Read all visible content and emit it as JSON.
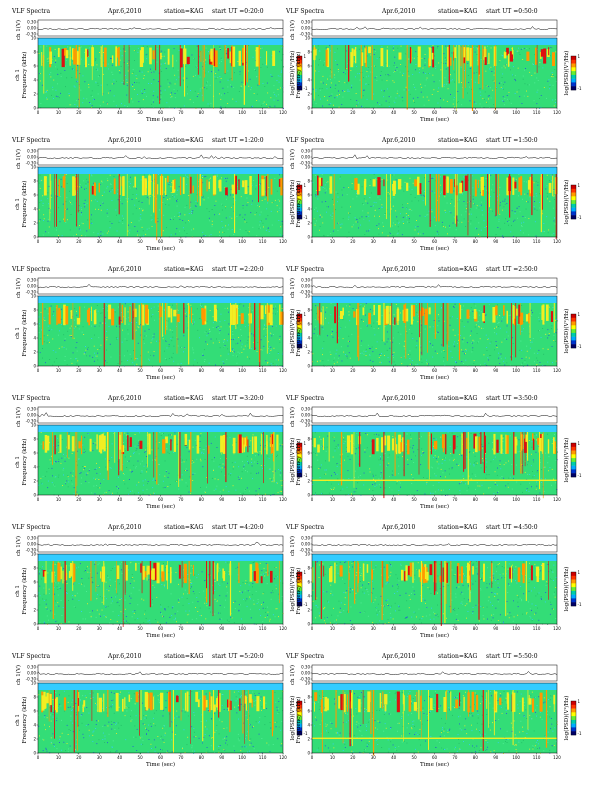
{
  "colors": {
    "background": "#33ccff",
    "green": "#33dd77",
    "yellow": "#f2ee22",
    "orange": "#ff9900",
    "red": "#dd1111",
    "blue": "#2255dd",
    "colorbar": [
      "#cc0000",
      "#ff3300",
      "#ff9900",
      "#ffff00",
      "#66ee33",
      "#00ccaa",
      "#00aaff",
      "#0033cc",
      "#000066"
    ]
  },
  "panels": [
    {
      "title": "VLF Spectra",
      "date": "Apr.6,2010",
      "station": "station=KAG",
      "start": "start  UT =0:20:0",
      "ch_label": "ch 1(V)",
      "ylabel_top": "ch 1",
      "ylabel": "Frequency (kHz)",
      "xlabel": "Time (sec)",
      "cbar_label": "log(PSD)(V²/Hz)"
    },
    {
      "title": "VLF Spectra",
      "date": "Apr.6,2010",
      "station": "station=KAG",
      "start": "start  UT =0:50:0",
      "ch_label": "ch 1(V)",
      "ylabel_top": "",
      "ylabel": "Frequency (kHz)",
      "xlabel": "Time (sec)",
      "cbar_label": "log(PSD)(V²/Hz)"
    },
    {
      "title": "VLF Spectra",
      "date": "Apr.6,2010",
      "station": "station=KAG",
      "start": "start  UT =1:20:0",
      "ch_label": "ch 1(V)",
      "ylabel_top": "ch 1",
      "ylabel": "Frequency (kHz)",
      "xlabel": "Time (sec)",
      "cbar_label": "log(PSD)(V²/Hz)"
    },
    {
      "title": "VLF Spectra",
      "date": "Apr.6,2010",
      "station": "station=KAG",
      "start": "start  UT =1:50:0",
      "ch_label": "ch 1(V)",
      "ylabel_top": "",
      "ylabel": "Frequency (kHz)",
      "xlabel": "Time (sec)",
      "cbar_label": "log(PSD)(V²/Hz)"
    },
    {
      "title": "VLF Spectra",
      "date": "Apr.6,2010",
      "station": "station=KAG",
      "start": "start  UT =2:20:0",
      "ch_label": "ch 1(V)",
      "ylabel_top": "ch 1",
      "ylabel": "Frequency (kHz)",
      "xlabel": "Time (sec)",
      "cbar_label": "log(PSD)(V²/Hz)"
    },
    {
      "title": "VLF Spectra",
      "date": "Apr.6,2010",
      "station": "station=KAG",
      "start": "start  UT =2:50:0",
      "ch_label": "ch 1(V)",
      "ylabel_top": "",
      "ylabel": "Frequency (kHz)",
      "xlabel": "Time (sec)",
      "cbar_label": "log(PSD)(V²/Hz)"
    },
    {
      "title": "VLF Spectra",
      "date": "Apr.6,2010",
      "station": "station=KAG",
      "start": "start  UT =3:20:0",
      "ch_label": "ch 1(V)",
      "ylabel_top": "ch 1",
      "ylabel": "Frequency (kHz)",
      "xlabel": "Time (sec)",
      "cbar_label": "log(PSD)(V²/Hz)"
    },
    {
      "title": "VLF Spectra",
      "date": "Apr.6,2010",
      "station": "station=KAG",
      "start": "start  UT =3:50:0",
      "ch_label": "ch 1(V)",
      "ylabel_top": "",
      "ylabel": "Frequency (kHz)",
      "xlabel": "Time (sec)",
      "cbar_label": "log(PSD)(V²/Hz)"
    },
    {
      "title": "VLF Spectra",
      "date": "Apr.6,2010",
      "station": "station=KAG",
      "start": "start  UT =4:20:0",
      "ch_label": "ch 1(V)",
      "ylabel_top": "ch 1",
      "ylabel": "Frequency (kHz)",
      "xlabel": "Time (sec)",
      "cbar_label": "log(PSD)(V²/Hz)"
    },
    {
      "title": "VLF Spectra",
      "date": "Apr.6,2010",
      "station": "station=KAG",
      "start": "start  UT =4:50:0",
      "ch_label": "ch 1(V)",
      "ylabel_top": "",
      "ylabel": "Frequency (kHz)",
      "xlabel": "Time (sec)",
      "cbar_label": "log(PSD)(V²/Hz)"
    },
    {
      "title": "VLF Spectra",
      "date": "Apr.6,2010",
      "station": "station=KAG",
      "start": "start  UT =5:20:0",
      "ch_label": "ch 1(V)",
      "ylabel_top": "ch 1",
      "ylabel": "Frequency (kHz)",
      "xlabel": "Time (sec)",
      "cbar_label": "log(PSD)(V²/Hz)"
    },
    {
      "title": "VLF Spectra",
      "date": "Apr.6,2010",
      "station": "station=KAG",
      "start": "start  UT =5:50:0",
      "ch_label": "ch 1(V)",
      "ylabel_top": "",
      "ylabel": "Frequency (kHz)",
      "xlabel": "Time (sec)",
      "cbar_label": "log(PSD)(V²/Hz)"
    }
  ],
  "chart_data": {
    "type": "heatmap",
    "panel_count": 12,
    "layout_rows": 6,
    "layout_cols": 2,
    "x_range": [
      0,
      120
    ],
    "x_ticks": [
      0,
      10,
      20,
      30,
      40,
      50,
      60,
      70,
      80,
      90,
      100,
      110,
      120
    ],
    "y_range": [
      0,
      10
    ],
    "y_ticks": [
      0,
      2,
      4,
      6,
      8,
      10
    ],
    "ch_ticks": [
      "0.30",
      "0.00",
      "-0.30"
    ],
    "cbar_ticks": [
      "1",
      "-1"
    ],
    "grid": false
  }
}
